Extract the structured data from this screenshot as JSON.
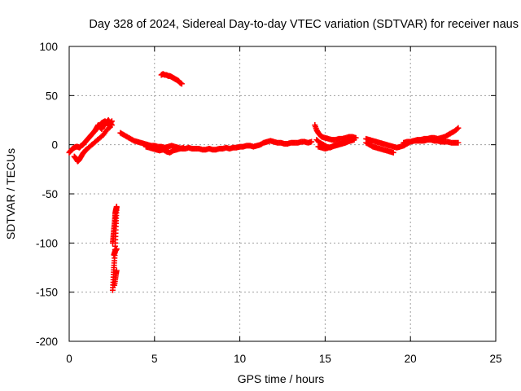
{
  "chart_data": {
    "type": "scatter",
    "title": "Day 328 of 2024, Sidereal Day-to-day VTEC variation (SDTVAR) for receiver naus",
    "xlabel": "GPS time / hours",
    "ylabel": "SDTVAR / TECUs",
    "xlim": [
      0,
      25
    ],
    "ylim": [
      -200,
      100
    ],
    "xticks": [
      0,
      5,
      10,
      15,
      20,
      25
    ],
    "yticks": [
      -200,
      -150,
      -100,
      -50,
      0,
      50,
      100
    ],
    "xtick_labels": [
      "0",
      "5",
      "10",
      "15",
      "20",
      "25"
    ],
    "ytick_labels": [
      "-200",
      "-150",
      "-100",
      "-50",
      "0",
      "50",
      "100"
    ],
    "grid": true,
    "marker": "+",
    "series": [
      {
        "name": "SDTVAR",
        "color": "#ff0000",
        "segments": [
          {
            "x": [
              0.0,
              0.1,
              0.2,
              0.3,
              0.4,
              0.5,
              0.6,
              0.7,
              0.8,
              0.9,
              1.0,
              1.1,
              1.2,
              1.3,
              1.4,
              1.5,
              1.6,
              1.7,
              1.8,
              1.9,
              2.0,
              2.1,
              2.2,
              2.3,
              2.4,
              2.5
            ],
            "y": [
              -8,
              -6,
              -4,
              -3,
              -2,
              -2,
              -3,
              -1,
              0,
              2,
              4,
              6,
              8,
              10,
              12,
              14,
              16,
              18,
              20,
              22,
              23,
              24,
              22,
              20,
              22,
              24
            ]
          },
          {
            "x": [
              0.3,
              0.4,
              0.5,
              0.6,
              0.7,
              0.8,
              0.9,
              1.0,
              1.2,
              1.4,
              1.6,
              1.8,
              2.0,
              2.2,
              2.4
            ],
            "y": [
              -12,
              -14,
              -17,
              -15,
              -12,
              -9,
              -7,
              -5,
              -2,
              1,
              4,
              7,
              10,
              15,
              18
            ]
          },
          {
            "x": [
              1.5,
              1.6,
              1.7,
              1.8,
              1.9,
              2.0,
              2.1,
              2.2,
              2.3,
              2.4,
              2.5
            ],
            "y": [
              14,
              17,
              20,
              18,
              16,
              19,
              21,
              23,
              25,
              22,
              20
            ]
          },
          {
            "x": [
              2.55,
              2.58,
              2.6,
              2.62,
              2.65,
              2.68,
              2.7,
              2.72,
              2.74,
              2.76,
              2.78
            ],
            "y": [
              -148,
              -140,
              -132,
              -125,
              -118,
              -110,
              -100,
              -90,
              -80,
              -72,
              -64
            ]
          },
          {
            "x": [
              2.55,
              2.58,
              2.6,
              2.63,
              2.66,
              2.68,
              2.7,
              2.72,
              2.74,
              2.76,
              2.78
            ],
            "y": [
              -100,
              -95,
              -90,
              -85,
              -80,
              -75,
              -70,
              -68,
              -66,
              -65,
              -63
            ]
          },
          {
            "x": [
              2.62,
              2.66,
              2.7,
              2.74,
              2.78
            ],
            "y": [
              -112,
              -110,
              -108,
              -107,
              -106
            ]
          },
          {
            "x": [
              2.65,
              2.7,
              2.74,
              2.78
            ],
            "y": [
              -143,
              -137,
              -132,
              -128
            ]
          },
          {
            "x": [
              3.0,
              3.2,
              3.4,
              3.6,
              3.8,
              4.0,
              4.2,
              4.4,
              4.6,
              4.8,
              5.0,
              5.2,
              5.4,
              5.6,
              5.8,
              6.0,
              6.2,
              6.4,
              6.6,
              6.8,
              7.0,
              7.2,
              7.4,
              7.6,
              7.8,
              8.0,
              8.2,
              8.4,
              8.6,
              8.8,
              9.0,
              9.2,
              9.4,
              9.6,
              9.8,
              10.0,
              10.2,
              10.4,
              10.6,
              10.8,
              11.0,
              11.2,
              11.4,
              11.6,
              11.8,
              12.0,
              12.2,
              12.4,
              12.6,
              12.8,
              13.0,
              13.2,
              13.4,
              13.6,
              13.8,
              14.0,
              14.2
            ],
            "y": [
              12,
              10,
              8,
              6,
              4,
              3,
              2,
              1,
              0,
              -1,
              -1,
              -2,
              -2,
              -3,
              -2,
              -1,
              -2,
              -3,
              -4,
              -4,
              -3,
              -4,
              -4,
              -4,
              -5,
              -5,
              -4,
              -5,
              -5,
              -4,
              -4,
              -3,
              -4,
              -3,
              -3,
              -2,
              -2,
              -1,
              -1,
              -2,
              -1,
              0,
              2,
              3,
              4,
              3,
              2,
              2,
              1,
              1,
              2,
              2,
              2,
              3,
              3,
              2,
              3
            ]
          },
          {
            "x": [
              4.5,
              4.7,
              4.9,
              5.1,
              5.3,
              5.5,
              5.7,
              5.9,
              6.1,
              6.3,
              6.5,
              6.7
            ],
            "y": [
              -2,
              -3,
              -4,
              -5,
              -6,
              -5,
              -7,
              -8,
              -6,
              -5,
              -4,
              -3
            ]
          },
          {
            "x": [
              5.4,
              5.5,
              5.6,
              5.7,
              5.8,
              5.9,
              6.0,
              6.1,
              6.2,
              6.3,
              6.4,
              6.5,
              6.6
            ],
            "y": [
              71,
              72,
              71,
              71,
              70,
              70,
              69,
              68,
              67,
              66,
              65,
              63,
              62
            ]
          },
          {
            "x": [
              14.4,
              14.5,
              14.6,
              14.7,
              14.8,
              15.0,
              15.2,
              15.4,
              15.6,
              15.8,
              16.0,
              16.2,
              16.4,
              16.6,
              16.8
            ],
            "y": [
              20,
              15,
              12,
              10,
              8,
              7,
              6,
              5,
              5,
              6,
              6,
              7,
              8,
              8,
              7
            ]
          },
          {
            "x": [
              14.5,
              14.7,
              14.9,
              15.1,
              15.3,
              15.5,
              15.7,
              15.9,
              16.1,
              16.3,
              16.5,
              16.7
            ],
            "y": [
              5,
              2,
              0,
              -2,
              -3,
              -1,
              0,
              1,
              2,
              3,
              4,
              5
            ]
          },
          {
            "x": [
              14.6,
              14.8,
              15.0,
              15.2,
              15.4,
              15.6,
              15.8,
              16.0,
              16.2,
              16.4
            ],
            "y": [
              -2,
              -3,
              -4,
              -3,
              -2,
              -1,
              0,
              1,
              2,
              4
            ]
          },
          {
            "x": [
              17.4,
              17.6,
              17.8,
              18.0,
              18.2,
              18.4,
              18.6,
              18.8,
              19.0,
              19.2,
              19.4,
              19.6,
              19.8,
              20.0,
              20.2,
              20.4,
              20.6,
              20.8,
              21.0,
              21.2,
              21.4,
              21.6,
              21.8,
              22.0,
              22.2,
              22.4,
              22.6,
              22.8
            ],
            "y": [
              6,
              5,
              4,
              3,
              2,
              1,
              0,
              -1,
              -2,
              -3,
              -2,
              -1,
              1,
              3,
              4,
              5,
              5,
              6,
              6,
              7,
              7,
              6,
              7,
              8,
              10,
              12,
              14,
              17
            ]
          },
          {
            "x": [
              17.4,
              17.6,
              17.8,
              18.0,
              18.2,
              18.4,
              18.6,
              18.8,
              19.0
            ],
            "y": [
              2,
              0,
              -2,
              -3,
              -4,
              -5,
              -6,
              -7,
              -8
            ]
          },
          {
            "x": [
              19.6,
              19.8,
              20.0,
              20.2,
              20.4,
              20.6,
              20.8,
              21.0,
              21.2,
              21.4,
              21.6,
              21.8,
              22.0,
              22.2,
              22.4,
              22.6,
              22.8
            ],
            "y": [
              2,
              3,
              3,
              4,
              4,
              4,
              4,
              5,
              5,
              4,
              4,
              3,
              3,
              3,
              2,
              2,
              2
            ]
          }
        ]
      }
    ]
  }
}
